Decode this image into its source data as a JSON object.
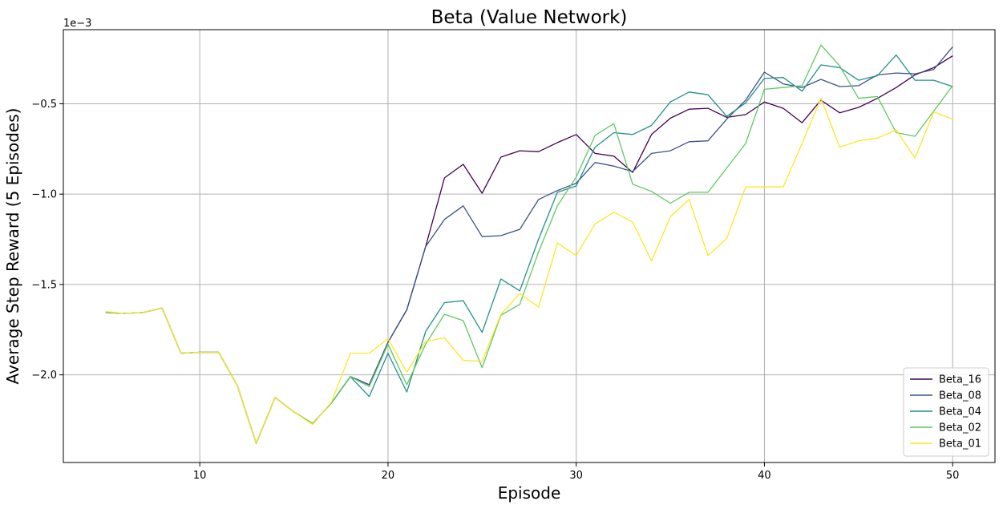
{
  "chart_data": {
    "type": "line",
    "title": "Beta (Value Network)",
    "xlabel": "Episode",
    "ylabel": "Average Step Reward (5 Episodes)",
    "y_multiplier": "1e−3",
    "xlim": [
      2.75,
      52.25
    ],
    "ylim": [
      -2.485,
      -0.09
    ],
    "x_ticks": [
      10,
      20,
      30,
      40,
      50
    ],
    "y_ticks": [
      -2.0,
      -1.5,
      -1.0,
      -0.5
    ],
    "y_tick_labels": [
      "−2.0",
      "−1.5",
      "−1.0",
      "−0.5"
    ],
    "grid": true,
    "legend_position": "lower-right",
    "x": [
      5,
      6,
      7,
      8,
      9,
      10,
      11,
      12,
      13,
      14,
      15,
      16,
      17,
      18,
      19,
      20,
      21,
      22,
      23,
      24,
      25,
      26,
      27,
      28,
      29,
      30,
      31,
      32,
      33,
      34,
      35,
      36,
      37,
      38,
      39,
      40,
      41,
      42,
      43,
      44,
      45,
      46,
      47,
      48,
      49,
      50
    ],
    "series": [
      {
        "name": "Beta_16",
        "color": "#440154",
        "values": [
          -1.655,
          -1.66,
          -1.655,
          -1.63,
          -1.88,
          -1.875,
          -1.875,
          -2.06,
          -2.38,
          -2.125,
          -2.205,
          -2.27,
          -2.155,
          -2.01,
          -2.055,
          -1.82,
          -1.64,
          -1.29,
          -0.91,
          -0.835,
          -0.995,
          -0.795,
          -0.76,
          -0.765,
          -0.715,
          -0.67,
          -0.775,
          -0.79,
          -0.88,
          -0.67,
          -0.58,
          -0.53,
          -0.525,
          -0.575,
          -0.56,
          -0.49,
          -0.525,
          -0.605,
          -0.48,
          -0.55,
          -0.52,
          -0.47,
          -0.41,
          -0.34,
          -0.3,
          -0.235
        ]
      },
      {
        "name": "Beta_08",
        "color": "#3b528b",
        "values": [
          -1.655,
          -1.66,
          -1.655,
          -1.63,
          -1.88,
          -1.875,
          -1.875,
          -2.06,
          -2.38,
          -2.125,
          -2.205,
          -2.27,
          -2.155,
          -2.01,
          -2.055,
          -1.82,
          -1.64,
          -1.29,
          -1.14,
          -1.065,
          -1.235,
          -1.23,
          -1.195,
          -1.03,
          -0.98,
          -0.94,
          -0.825,
          -0.845,
          -0.875,
          -0.775,
          -0.76,
          -0.71,
          -0.705,
          -0.585,
          -0.48,
          -0.325,
          -0.39,
          -0.41,
          -0.365,
          -0.405,
          -0.4,
          -0.34,
          -0.33,
          -0.335,
          -0.31,
          -0.185
        ]
      },
      {
        "name": "Beta_04",
        "color": "#21918c",
        "values": [
          -1.655,
          -1.66,
          -1.655,
          -1.63,
          -1.88,
          -1.875,
          -1.875,
          -2.06,
          -2.38,
          -2.125,
          -2.205,
          -2.27,
          -2.155,
          -2.01,
          -2.12,
          -1.88,
          -2.095,
          -1.76,
          -1.6,
          -1.59,
          -1.765,
          -1.47,
          -1.535,
          -1.25,
          -0.99,
          -0.955,
          -0.74,
          -0.66,
          -0.67,
          -0.62,
          -0.49,
          -0.435,
          -0.45,
          -0.57,
          -0.495,
          -0.36,
          -0.355,
          -0.43,
          -0.285,
          -0.3,
          -0.37,
          -0.345,
          -0.23,
          -0.37,
          -0.37,
          -0.405
        ]
      },
      {
        "name": "Beta_02",
        "color": "#5ec962",
        "values": [
          -1.655,
          -1.66,
          -1.655,
          -1.63,
          -1.88,
          -1.875,
          -1.875,
          -2.06,
          -2.38,
          -2.125,
          -2.205,
          -2.27,
          -2.155,
          -2.01,
          -2.065,
          -1.83,
          -2.055,
          -1.83,
          -1.665,
          -1.7,
          -1.96,
          -1.67,
          -1.61,
          -1.32,
          -1.065,
          -0.905,
          -0.675,
          -0.61,
          -0.945,
          -0.985,
          -1.05,
          -0.99,
          -0.99,
          -0.855,
          -0.72,
          -0.42,
          -0.41,
          -0.4,
          -0.175,
          -0.29,
          -0.47,
          -0.46,
          -0.66,
          -0.68,
          -0.54,
          -0.4
        ]
      },
      {
        "name": "Beta_01",
        "color": "#fde725",
        "values": [
          -1.65,
          -1.66,
          -1.655,
          -1.63,
          -1.88,
          -1.875,
          -1.875,
          -2.06,
          -2.38,
          -2.125,
          -2.205,
          -2.275,
          -2.15,
          -1.88,
          -1.88,
          -1.8,
          -1.985,
          -1.815,
          -1.795,
          -1.92,
          -1.925,
          -1.665,
          -1.55,
          -1.625,
          -1.27,
          -1.34,
          -1.165,
          -1.1,
          -1.155,
          -1.37,
          -1.125,
          -1.03,
          -1.34,
          -1.245,
          -0.96,
          -0.96,
          -0.96,
          -0.72,
          -0.47,
          -0.74,
          -0.705,
          -0.69,
          -0.645,
          -0.8,
          -0.545,
          -0.585
        ]
      }
    ]
  }
}
